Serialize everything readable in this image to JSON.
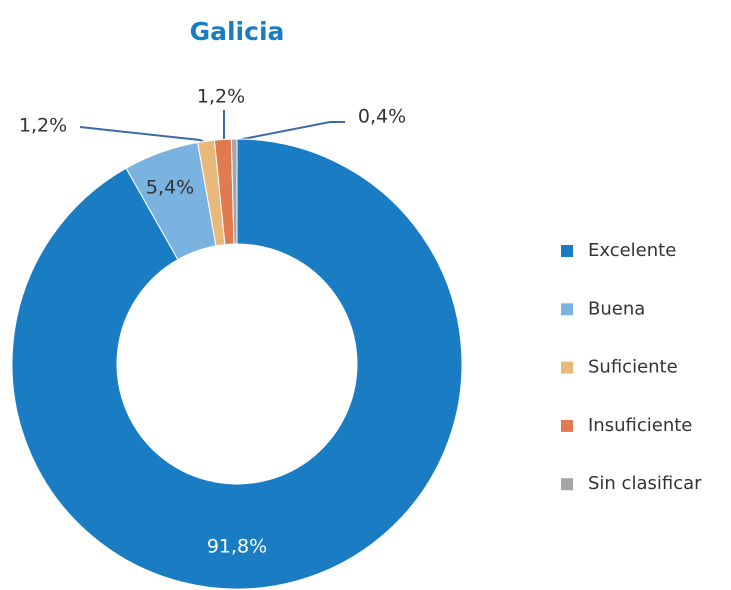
{
  "chart_data": {
    "type": "donut",
    "title": "Galicia",
    "categories": [
      "Excelente",
      "Buena",
      "Suficiente",
      "Insuficiente",
      "Sin clasificar"
    ],
    "values": [
      91.8,
      5.4,
      1.2,
      1.2,
      0.4
    ],
    "value_labels": [
      "91,8%",
      "5,4%",
      "1,2%",
      "1,2%",
      "0,4%"
    ],
    "colors": [
      "#1a7dc4",
      "#7ab3e0",
      "#e8b97a",
      "#e07b4f",
      "#a5a5a5"
    ],
    "legend": "right"
  }
}
